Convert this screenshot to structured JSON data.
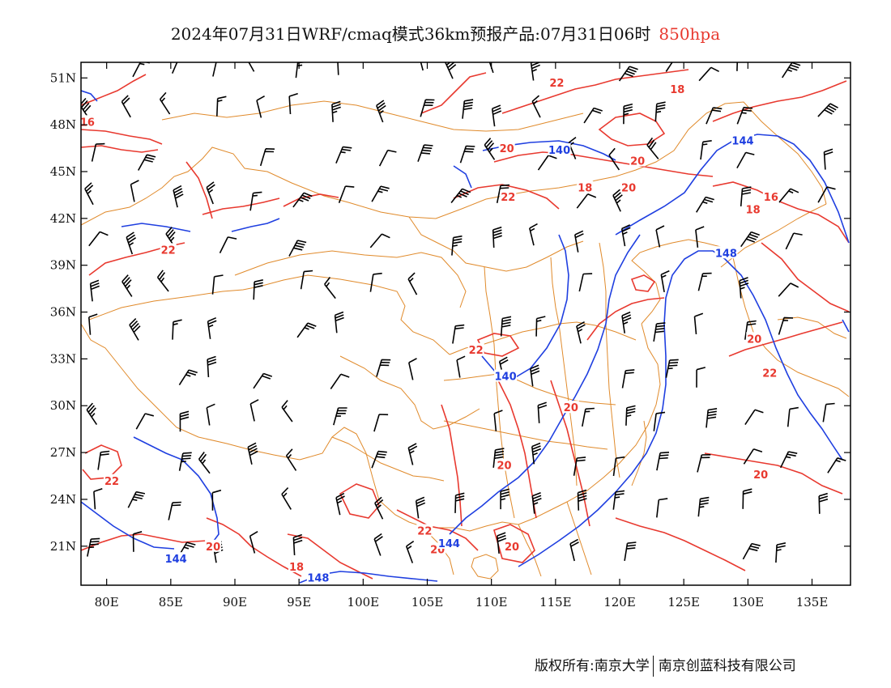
{
  "title": {
    "main": "2024年07月31日WRF/cmaq模式36km预报产品:07月31日06时",
    "level": "850hpa",
    "level_color": "#e8392f"
  },
  "map": {
    "lon_range": [
      78,
      138
    ],
    "lat_range": [
      18.5,
      52
    ],
    "lon_ticks": [
      80,
      85,
      90,
      95,
      100,
      105,
      110,
      115,
      120,
      125,
      130,
      135
    ],
    "lon_labels": [
      "80E",
      "85E",
      "90E",
      "95E",
      "100E",
      "105E",
      "110E",
      "115E",
      "120E",
      "125E",
      "130E",
      "135E"
    ],
    "lat_ticks": [
      51,
      48,
      45,
      42,
      39,
      36,
      33,
      30,
      27,
      24,
      21
    ],
    "lat_labels": [
      "51N",
      "48N",
      "45N",
      "42N",
      "39N",
      "36N",
      "33N",
      "30N",
      "27N",
      "24N",
      "21N"
    ],
    "colors": {
      "temperature": "#e8392f",
      "height": "#1f3fe0",
      "boundary": "#e08a2b",
      "wind": "#000000"
    },
    "temperature_labels": [
      {
        "text": "16",
        "lon": 78.5,
        "lat": 48.2
      },
      {
        "text": "22",
        "lon": 115.1,
        "lat": 50.7
      },
      {
        "text": "18",
        "lon": 124.5,
        "lat": 50.3
      },
      {
        "text": "20",
        "lon": 111.2,
        "lat": 46.5
      },
      {
        "text": "20",
        "lon": 121.4,
        "lat": 45.7
      },
      {
        "text": "22",
        "lon": 111.3,
        "lat": 43.4
      },
      {
        "text": "18",
        "lon": 117.3,
        "lat": 44.0
      },
      {
        "text": "20",
        "lon": 120.7,
        "lat": 44.0
      },
      {
        "text": "16",
        "lon": 131.8,
        "lat": 43.4
      },
      {
        "text": "18",
        "lon": 130.4,
        "lat": 42.6
      },
      {
        "text": "22",
        "lon": 84.8,
        "lat": 40.0
      },
      {
        "text": "22",
        "lon": 108.8,
        "lat": 33.6
      },
      {
        "text": "20",
        "lon": 130.5,
        "lat": 34.3
      },
      {
        "text": "22",
        "lon": 131.7,
        "lat": 32.1
      },
      {
        "text": "20",
        "lon": 116.2,
        "lat": 29.9
      },
      {
        "text": "20",
        "lon": 111.0,
        "lat": 26.2
      },
      {
        "text": "20",
        "lon": 131.0,
        "lat": 25.6
      },
      {
        "text": "22",
        "lon": 80.4,
        "lat": 25.2
      },
      {
        "text": "22",
        "lon": 104.8,
        "lat": 22.0
      },
      {
        "text": "20",
        "lon": 88.3,
        "lat": 21.0
      },
      {
        "text": "20",
        "lon": 105.8,
        "lat": 20.8
      },
      {
        "text": "20",
        "lon": 111.6,
        "lat": 21.0
      },
      {
        "text": "18",
        "lon": 94.8,
        "lat": 19.7
      }
    ],
    "height_labels": [
      {
        "text": "140",
        "lon": 115.3,
        "lat": 46.4
      },
      {
        "text": "144",
        "lon": 129.6,
        "lat": 47.0
      },
      {
        "text": "148",
        "lon": 128.3,
        "lat": 39.8
      },
      {
        "text": "140",
        "lon": 111.1,
        "lat": 31.9
      },
      {
        "text": "144",
        "lon": 106.7,
        "lat": 21.2
      },
      {
        "text": "144",
        "lon": 85.4,
        "lat": 20.2
      },
      {
        "text": "148",
        "lon": 96.5,
        "lat": 19.0
      }
    ]
  },
  "footer": {
    "left": "版权所有:南京大学",
    "right": "南京创蓝科技有限公司"
  }
}
